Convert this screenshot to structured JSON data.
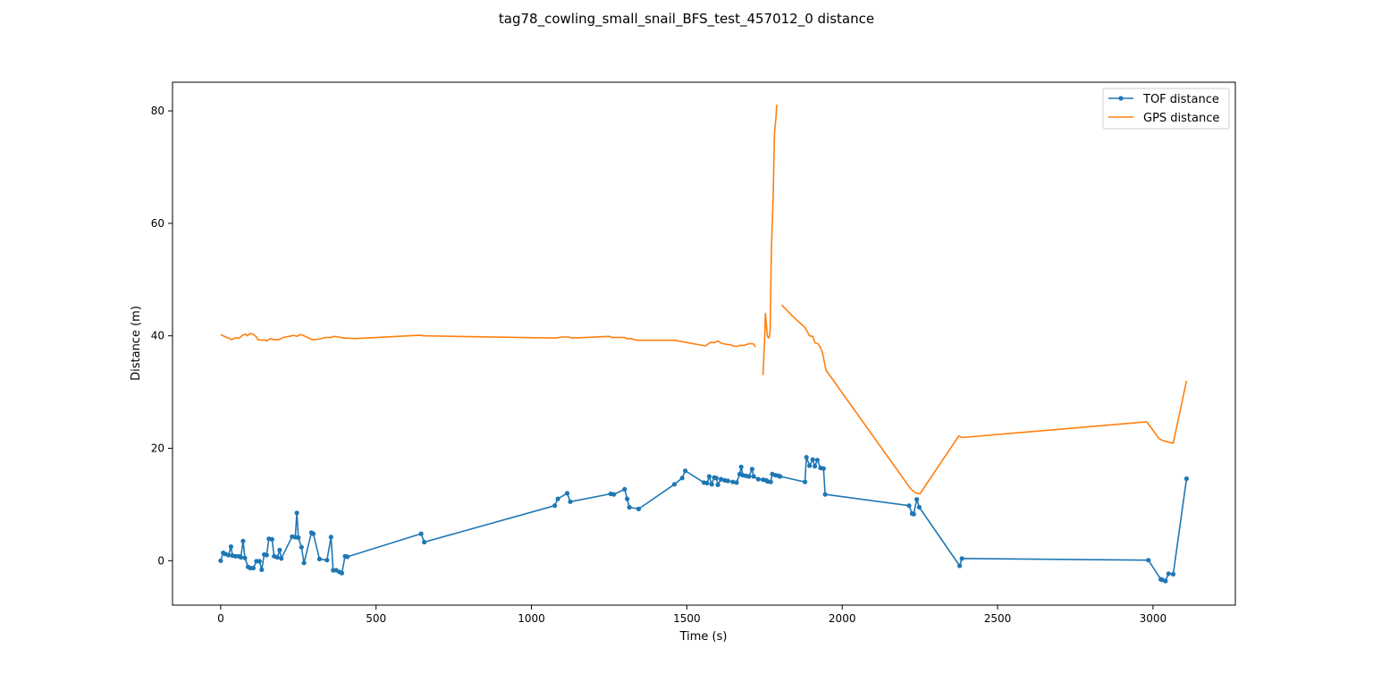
{
  "chart_data": {
    "type": "line",
    "title": "tag78_cowling_small_snail_BFS_test_457012_0 distance",
    "xlabel": "Time (s)",
    "ylabel": "Distance (m)",
    "xlim": [
      -155,
      3265
    ],
    "ylim": [
      -7.9,
      85.1
    ],
    "xticks": [
      0,
      500,
      1000,
      1500,
      2000,
      2500,
      3000
    ],
    "yticks": [
      0,
      20,
      40,
      60,
      80
    ],
    "grid": false,
    "legend": {
      "placement": "top-right",
      "entries": [
        "TOF distance",
        "GPS distance"
      ]
    },
    "series": [
      {
        "name": "TOF distance",
        "color": "#1f77b4",
        "marker": "circle",
        "points": [
          [
            0,
            0.0
          ],
          [
            8,
            1.4
          ],
          [
            15,
            1.2
          ],
          [
            25,
            1.0
          ],
          [
            33,
            2.5
          ],
          [
            38,
            0.9
          ],
          [
            48,
            0.8
          ],
          [
            58,
            0.8
          ],
          [
            65,
            0.6
          ],
          [
            72,
            3.5
          ],
          [
            78,
            0.5
          ],
          [
            88,
            -1.1
          ],
          [
            95,
            -1.3
          ],
          [
            105,
            -1.3
          ],
          [
            115,
            -0.1
          ],
          [
            125,
            -0.1
          ],
          [
            132,
            -1.6
          ],
          [
            140,
            1.1
          ],
          [
            148,
            1.0
          ],
          [
            155,
            3.9
          ],
          [
            165,
            3.8
          ],
          [
            172,
            0.8
          ],
          [
            182,
            0.6
          ],
          [
            190,
            1.9
          ],
          [
            195,
            0.4
          ],
          [
            230,
            4.3
          ],
          [
            240,
            4.2
          ],
          [
            245,
            8.5
          ],
          [
            250,
            4.1
          ],
          [
            260,
            2.4
          ],
          [
            268,
            -0.4
          ],
          [
            292,
            5.0
          ],
          [
            298,
            4.8
          ],
          [
            318,
            0.3
          ],
          [
            342,
            0.1
          ],
          [
            355,
            4.2
          ],
          [
            362,
            -1.7
          ],
          [
            372,
            -1.7
          ],
          [
            382,
            -2.0
          ],
          [
            390,
            -2.2
          ],
          [
            400,
            0.8
          ],
          [
            408,
            0.7
          ],
          [
            645,
            4.8
          ],
          [
            655,
            3.3
          ],
          [
            1075,
            9.8
          ],
          [
            1085,
            11.0
          ],
          [
            1115,
            12.0
          ],
          [
            1125,
            10.5
          ],
          [
            1255,
            11.9
          ],
          [
            1265,
            11.8
          ],
          [
            1300,
            12.7
          ],
          [
            1308,
            11.0
          ],
          [
            1315,
            9.5
          ],
          [
            1345,
            9.2
          ],
          [
            1460,
            13.6
          ],
          [
            1485,
            14.7
          ],
          [
            1495,
            16.0
          ],
          [
            1555,
            13.9
          ],
          [
            1565,
            13.8
          ],
          [
            1572,
            15.0
          ],
          [
            1580,
            13.6
          ],
          [
            1588,
            14.8
          ],
          [
            1595,
            14.7
          ],
          [
            1600,
            13.5
          ],
          [
            1610,
            14.5
          ],
          [
            1622,
            14.3
          ],
          [
            1632,
            14.2
          ],
          [
            1648,
            14.0
          ],
          [
            1660,
            13.9
          ],
          [
            1670,
            15.4
          ],
          [
            1675,
            16.7
          ],
          [
            1680,
            15.2
          ],
          [
            1690,
            15.1
          ],
          [
            1700,
            15.0
          ],
          [
            1710,
            16.3
          ],
          [
            1715,
            15.0
          ],
          [
            1730,
            14.5
          ],
          [
            1745,
            14.4
          ],
          [
            1755,
            14.3
          ],
          [
            1760,
            14.1
          ],
          [
            1770,
            14.0
          ],
          [
            1775,
            15.4
          ],
          [
            1785,
            15.2
          ],
          [
            1795,
            15.1
          ],
          [
            1800,
            15.0
          ],
          [
            1880,
            14.0
          ],
          [
            1885,
            18.4
          ],
          [
            1895,
            16.9
          ],
          [
            1905,
            18.0
          ],
          [
            1912,
            16.8
          ],
          [
            1920,
            17.9
          ],
          [
            1930,
            16.5
          ],
          [
            1940,
            16.4
          ],
          [
            1945,
            11.8
          ],
          [
            2215,
            9.8
          ],
          [
            2225,
            8.4
          ],
          [
            2230,
            8.3
          ],
          [
            2240,
            10.9
          ],
          [
            2248,
            9.5
          ],
          [
            2378,
            -0.9
          ],
          [
            2385,
            0.4
          ],
          [
            2985,
            0.1
          ],
          [
            3025,
            -3.3
          ],
          [
            3030,
            -3.4
          ],
          [
            3040,
            -3.6
          ],
          [
            3050,
            -2.3
          ],
          [
            3065,
            -2.4
          ],
          [
            3108,
            14.6
          ]
        ]
      },
      {
        "name": "GPS distance",
        "color": "#ff7f0e",
        "marker": "none",
        "segments": [
          [
            [
              0,
              40.2
            ],
            [
              20,
              39.7
            ],
            [
              30,
              39.5
            ],
            [
              35,
              39.3
            ],
            [
              45,
              39.6
            ],
            [
              60,
              39.6
            ],
            [
              70,
              40.1
            ],
            [
              80,
              40.3
            ],
            [
              85,
              40.0
            ],
            [
              95,
              40.4
            ],
            [
              105,
              40.3
            ],
            [
              115,
              39.8
            ],
            [
              120,
              39.3
            ],
            [
              135,
              39.2
            ],
            [
              140,
              39.3
            ],
            [
              148,
              39.1
            ],
            [
              160,
              39.5
            ],
            [
              170,
              39.3
            ],
            [
              185,
              39.3
            ],
            [
              195,
              39.5
            ],
            [
              200,
              39.7
            ],
            [
              220,
              39.9
            ],
            [
              235,
              40.1
            ],
            [
              245,
              39.9
            ],
            [
              255,
              40.2
            ],
            [
              265,
              40.1
            ],
            [
              280,
              39.7
            ],
            [
              295,
              39.3
            ],
            [
              315,
              39.4
            ],
            [
              335,
              39.7
            ],
            [
              355,
              39.7
            ],
            [
              365,
              39.9
            ],
            [
              380,
              39.8
            ],
            [
              395,
              39.6
            ],
            [
              410,
              39.6
            ],
            [
              430,
              39.5
            ],
            [
              640,
              40.1
            ],
            [
              655,
              40.0
            ],
            [
              1075,
              39.6
            ],
            [
              1090,
              39.7
            ],
            [
              1100,
              39.8
            ],
            [
              1120,
              39.8
            ],
            [
              1130,
              39.6
            ],
            [
              1250,
              39.9
            ],
            [
              1260,
              39.7
            ],
            [
              1300,
              39.7
            ],
            [
              1305,
              39.5
            ],
            [
              1320,
              39.5
            ],
            [
              1340,
              39.2
            ],
            [
              1460,
              39.2
            ],
            [
              1560,
              38.2
            ],
            [
              1575,
              38.8
            ],
            [
              1590,
              38.8
            ],
            [
              1600,
              39.1
            ],
            [
              1610,
              38.7
            ],
            [
              1625,
              38.5
            ],
            [
              1640,
              38.4
            ],
            [
              1650,
              38.2
            ],
            [
              1660,
              38.1
            ],
            [
              1670,
              38.3
            ],
            [
              1685,
              38.3
            ],
            [
              1700,
              38.6
            ],
            [
              1710,
              38.6
            ],
            [
              1716,
              38.5
            ],
            [
              1720,
              38.0
            ]
          ],
          [
            [
              1745,
              33.0
            ],
            [
              1750,
              39.0
            ],
            [
              1753,
              44.0
            ],
            [
              1756,
              42.0
            ],
            [
              1759,
              40.0
            ],
            [
              1763,
              39.6
            ],
            [
              1766,
              40.0
            ],
            [
              1768,
              41.0
            ],
            [
              1772,
              55.0
            ],
            [
              1778,
              65.0
            ],
            [
              1782,
              76.0
            ],
            [
              1787,
              79.0
            ],
            [
              1789,
              81.1
            ]
          ],
          [
            [
              1805,
              45.5
            ],
            [
              1840,
              43.5
            ],
            [
              1880,
              41.5
            ],
            [
              1895,
              40.0
            ],
            [
              1905,
              39.9
            ],
            [
              1913,
              38.7
            ],
            [
              1922,
              38.6
            ],
            [
              1930,
              37.9
            ],
            [
              1937,
              36.9
            ],
            [
              1942,
              35.5
            ],
            [
              1948,
              33.9
            ],
            [
              2220,
              12.8
            ],
            [
              2235,
              12.1
            ],
            [
              2250,
              11.9
            ],
            [
              2375,
              22.2
            ],
            [
              2385,
              21.9
            ],
            [
              2980,
              24.7
            ],
            [
              3020,
              21.7
            ],
            [
              3035,
              21.3
            ],
            [
              3065,
              20.9
            ],
            [
              3108,
              32.0
            ]
          ]
        ]
      }
    ]
  }
}
